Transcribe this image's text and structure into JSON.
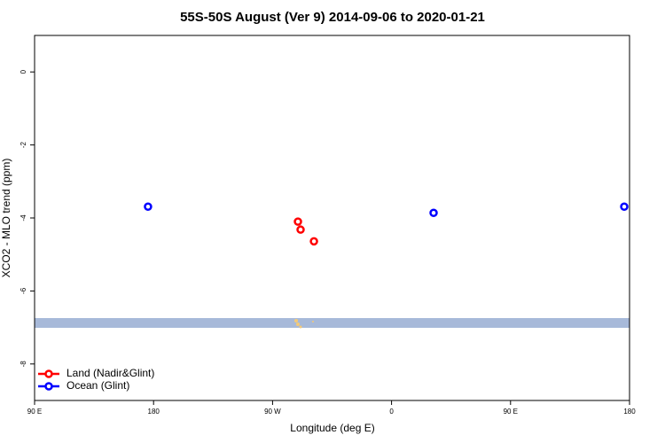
{
  "chart_data": {
    "type": "scatter",
    "title": "55S-50S August (Ver 9)   2014-09-06 to 2020-01-21",
    "x_label": "Longitude (deg E)",
    "y_label": "XCO2 - MLO trend (ppm)",
    "xlim": [
      90,
      540
    ],
    "xticks": [
      {
        "value": 90,
        "label": "90 E"
      },
      180,
      {
        "value": 270,
        "label": "90 W"
      },
      {
        "value": 360,
        "label": "0"
      },
      {
        "value": 450,
        "label": "90 E"
      },
      {
        "value": 540,
        "label": "180"
      }
    ],
    "ylim": [
      -9,
      1
    ],
    "yticks": [
      0,
      -2,
      -4,
      -6,
      -8
    ],
    "legend": "lower left",
    "series": [
      {
        "name": "Land (Nadir&Glint)",
        "color": "#ff0000",
        "x": [
          289.2,
          291.2,
          301.3
        ],
        "values": [
          -4.1,
          -4.32,
          -4.64
        ]
      },
      {
        "name": "Ocean (Glint)",
        "color": "#0000ff",
        "x": [
          175.8,
          391.8,
          536
        ],
        "values": [
          -3.69,
          -3.86,
          -3.69
        ]
      }
    ]
  }
}
